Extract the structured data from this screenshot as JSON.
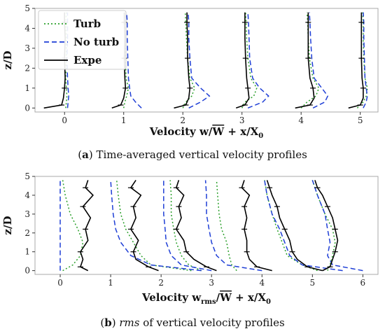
{
  "captions": {
    "a": {
      "letter": "a",
      "text": "Time-averaged vertical velocity profiles"
    },
    "b": {
      "letter": "b",
      "rms": "rms",
      "text": "of vertical velocity profiles"
    }
  },
  "colors": {
    "turb": "#2ca02c",
    "no_turb": "#1f3fd6",
    "expe": "#000000"
  },
  "chart_data": [
    {
      "type": "line",
      "panel": "a",
      "ylabel": "z/D",
      "xlabel_html": "Velocity w/W̄ + x/X₀",
      "xlabel_parts": {
        "prefix": "Velocity w/",
        "bar": "W",
        "suffix": " + x/X",
        "sub": "0"
      },
      "xlim": [
        -0.5,
        5.3
      ],
      "ylim": [
        -0.2,
        5.0
      ],
      "xticks": [
        0,
        1,
        2,
        3,
        4,
        5
      ],
      "yticks": [
        0,
        1,
        2,
        3,
        4,
        5
      ],
      "legend": {
        "placement": "top-left",
        "entries": [
          "Turb",
          "No turb",
          "Expe"
        ]
      },
      "series": [
        {
          "name": "Turb",
          "style": "dotted",
          "profiles": [
            {
              "x": [
                0.02,
                0.03,
                0.04,
                0.03,
                0.02,
                0.03,
                0.03,
                0.02,
                0.03
              ],
              "z": [
                0,
                0.3,
                0.6,
                1.0,
                1.5,
                2.5,
                3.5,
                4.3,
                4.8
              ]
            },
            {
              "x": [
                1.0,
                1.02,
                1.05,
                1.08,
                1.04,
                1.03,
                1.02,
                1.02,
                1.01
              ],
              "z": [
                0,
                0.3,
                0.6,
                1.0,
                1.5,
                2.5,
                3.5,
                4.3,
                4.8
              ]
            },
            {
              "x": [
                2.0,
                2.05,
                2.15,
                2.2,
                2.12,
                2.08,
                2.06,
                2.05,
                2.04
              ],
              "z": [
                0,
                0.3,
                0.6,
                1.0,
                1.5,
                2.5,
                3.5,
                4.3,
                4.8
              ]
            },
            {
              "x": [
                3.0,
                3.05,
                3.2,
                3.25,
                3.15,
                3.1,
                3.08,
                3.07,
                3.06
              ],
              "z": [
                0,
                0.3,
                0.6,
                1.0,
                1.5,
                2.5,
                3.5,
                4.3,
                4.8
              ]
            },
            {
              "x": [
                4.0,
                4.1,
                4.25,
                4.3,
                4.2,
                4.14,
                4.12,
                4.11,
                4.1
              ],
              "z": [
                0,
                0.3,
                0.6,
                1.0,
                1.5,
                2.5,
                3.5,
                4.3,
                4.8
              ]
            },
            {
              "x": [
                4.95,
                5.05,
                5.1,
                5.12,
                5.08,
                5.06,
                5.05,
                5.05,
                5.04
              ],
              "z": [
                0,
                0.3,
                0.6,
                1.0,
                1.5,
                2.5,
                3.5,
                4.3,
                4.8
              ]
            }
          ]
        },
        {
          "name": "No turb",
          "style": "dashed",
          "profiles": [
            {
              "x": [
                0.05,
                0.06,
                0.07,
                0.06,
                0.05,
                0.04,
                0.05,
                0.05,
                0.05
              ],
              "z": [
                0,
                0.3,
                0.6,
                1.0,
                1.5,
                2.5,
                3.5,
                4.3,
                4.8
              ]
            },
            {
              "x": [
                1.3,
                1.2,
                1.12,
                1.1,
                1.08,
                1.07,
                1.06,
                1.06,
                1.05
              ],
              "z": [
                0,
                0.3,
                0.6,
                1.0,
                1.5,
                2.5,
                3.5,
                4.3,
                4.8
              ]
            },
            {
              "x": [
                2.1,
                2.3,
                2.45,
                2.3,
                2.15,
                2.12,
                2.1,
                2.1,
                2.09
              ],
              "z": [
                0,
                0.3,
                0.6,
                1.0,
                1.5,
                2.5,
                3.5,
                4.3,
                4.8
              ]
            },
            {
              "x": [
                3.1,
                3.35,
                3.45,
                3.3,
                3.18,
                3.13,
                3.12,
                3.11,
                3.1
              ],
              "z": [
                0,
                0.3,
                0.6,
                1.0,
                1.5,
                2.5,
                3.5,
                4.3,
                4.8
              ]
            },
            {
              "x": [
                4.2,
                4.4,
                4.45,
                4.35,
                4.22,
                4.18,
                4.16,
                4.15,
                4.14
              ],
              "z": [
                0,
                0.3,
                0.6,
                1.0,
                1.5,
                2.5,
                3.5,
                4.3,
                4.8
              ]
            },
            {
              "x": [
                5.05,
                5.1,
                5.12,
                5.1,
                5.08,
                5.07,
                5.06,
                5.06,
                5.05
              ],
              "z": [
                0,
                0.3,
                0.6,
                1.0,
                1.5,
                2.5,
                3.5,
                4.3,
                4.8
              ]
            }
          ]
        },
        {
          "name": "Expe",
          "style": "solid",
          "profiles": [
            {
              "x": [
                -0.35,
                -0.05,
                -0.02,
                0.0,
                0.01,
                0.0,
                0.01,
                0.0,
                0.0
              ],
              "z": [
                0,
                0.15,
                0.5,
                1.0,
                1.5,
                2.5,
                3.5,
                4.3,
                4.8
              ]
            },
            {
              "x": [
                0.8,
                0.95,
                1.0,
                1.03,
                1.02,
                1.01,
                1.02,
                1.01,
                1.01
              ],
              "z": [
                0,
                0.15,
                0.5,
                1.0,
                1.5,
                2.5,
                3.5,
                4.3,
                4.8
              ]
            },
            {
              "x": [
                1.85,
                2.05,
                2.1,
                2.12,
                2.1,
                2.08,
                2.08,
                2.07,
                2.07
              ],
              "z": [
                0,
                0.15,
                0.5,
                1.0,
                1.5,
                2.5,
                3.5,
                4.3,
                4.8
              ]
            },
            {
              "x": [
                2.9,
                3.05,
                3.12,
                3.1,
                3.08,
                3.06,
                3.05,
                3.05,
                3.05
              ],
              "z": [
                0,
                0.15,
                0.5,
                1.0,
                1.5,
                2.5,
                3.5,
                4.3,
                4.8
              ]
            },
            {
              "x": [
                3.9,
                4.15,
                4.22,
                4.2,
                4.15,
                4.12,
                4.12,
                4.12,
                4.12
              ],
              "z": [
                0,
                0.15,
                0.5,
                1.0,
                1.5,
                2.5,
                3.5,
                4.3,
                4.8
              ]
            },
            {
              "x": [
                4.8,
                5.0,
                5.05,
                5.05,
                5.03,
                5.02,
                5.02,
                5.02,
                5.02
              ],
              "z": [
                0,
                0.15,
                0.5,
                1.0,
                1.5,
                2.5,
                3.5,
                4.3,
                4.8
              ]
            }
          ]
        }
      ]
    },
    {
      "type": "line",
      "panel": "b",
      "ylabel": "z/D",
      "xlabel_html": "Velocity w_rms/W̄ + x/X₀",
      "xlabel_parts": {
        "prefix": "Velocity w",
        "sub1": "rms",
        "mid": "/",
        "bar": "W",
        "suffix": " + x/X",
        "sub": "0"
      },
      "xlim": [
        -0.5,
        6.3
      ],
      "ylim": [
        -0.2,
        5.0
      ],
      "xticks": [
        0,
        1,
        2,
        3,
        4,
        5,
        6
      ],
      "yticks": [
        0,
        1,
        2,
        3,
        4,
        5
      ],
      "series": [
        {
          "name": "Turb",
          "style": "dotted",
          "profiles": [
            {
              "x": [
                0.05,
                0.25,
                0.4,
                0.45,
                0.35,
                0.2,
                0.1,
                0.05
              ],
              "z": [
                0,
                0.3,
                0.8,
                1.5,
                2.2,
                3.0,
                4.0,
                4.8
              ]
            },
            {
              "x": [
                2.6,
                1.8,
                1.6,
                1.45,
                1.3,
                1.2,
                1.15,
                1.12
              ],
              "z": [
                0,
                0.3,
                0.8,
                1.5,
                2.2,
                3.0,
                4.0,
                4.8
              ]
            },
            {
              "x": [
                2.8,
                2.55,
                2.4,
                2.3,
                2.25,
                2.2,
                2.2,
                2.18
              ],
              "z": [
                0,
                0.3,
                0.8,
                1.5,
                2.2,
                3.0,
                4.0,
                4.8
              ]
            },
            {
              "x": [
                3.5,
                3.4,
                3.35,
                3.3,
                3.2,
                3.15,
                3.12,
                3.1
              ],
              "z": [
                0,
                0.3,
                0.8,
                1.5,
                2.2,
                3.0,
                4.0,
                4.8
              ]
            },
            {
              "x": [
                5.1,
                4.8,
                4.5,
                4.4,
                4.3,
                4.2,
                4.1,
                4.05
              ],
              "z": [
                0,
                0.3,
                0.8,
                1.5,
                2.2,
                3.0,
                4.0,
                4.8
              ]
            },
            {
              "x": [
                5.3,
                5.35,
                5.4,
                5.45,
                5.4,
                5.25,
                5.1,
                5.0
              ],
              "z": [
                0,
                0.3,
                0.8,
                1.5,
                2.2,
                3.0,
                4.0,
                4.8
              ]
            }
          ]
        },
        {
          "name": "No turb",
          "style": "dashed",
          "profiles": [
            {
              "x": [
                0.0,
                0.0,
                0.0,
                0.0,
                0.0,
                0.0,
                0.0,
                0.0
              ],
              "z": [
                0,
                0.3,
                0.8,
                1.5,
                2.2,
                3.0,
                4.0,
                4.8
              ]
            },
            {
              "x": [
                2.8,
                1.8,
                1.4,
                1.2,
                1.1,
                1.05,
                1.02,
                1.0
              ],
              "z": [
                0,
                0.3,
                0.8,
                1.5,
                2.2,
                3.0,
                4.0,
                4.8
              ]
            },
            {
              "x": [
                3.0,
                2.4,
                2.2,
                2.1,
                2.08,
                2.05,
                2.05,
                2.05
              ],
              "z": [
                0,
                0.3,
                0.8,
                1.5,
                2.2,
                3.0,
                4.0,
                4.8
              ]
            },
            {
              "x": [
                4.0,
                3.3,
                3.1,
                3.0,
                2.95,
                2.9,
                2.9,
                2.88
              ],
              "z": [
                0,
                0.3,
                0.8,
                1.5,
                2.2,
                3.0,
                4.0,
                4.8
              ]
            },
            {
              "x": [
                5.6,
                4.8,
                4.55,
                4.45,
                4.35,
                4.2,
                4.1,
                4.05
              ],
              "z": [
                0,
                0.3,
                0.8,
                1.5,
                2.2,
                3.0,
                4.0,
                4.8
              ]
            },
            {
              "x": [
                6.0,
                5.4,
                5.3,
                5.35,
                5.3,
                5.25,
                5.1,
                5.0
              ],
              "z": [
                0,
                0.3,
                0.8,
                1.5,
                2.2,
                3.0,
                4.0,
                4.8
              ]
            }
          ]
        },
        {
          "name": "Expe",
          "style": "solid",
          "profiles": [
            {
              "x": [
                0.55,
                0.4,
                0.45,
                0.4,
                0.55,
                0.5,
                0.6,
                0.45,
                0.65,
                0.5,
                0.55
              ],
              "z": [
                0,
                0.2,
                0.6,
                1.0,
                1.6,
                2.2,
                2.8,
                3.4,
                4.0,
                4.4,
                4.8
              ]
            },
            {
              "x": [
                1.95,
                1.75,
                1.5,
                1.45,
                1.55,
                1.4,
                1.5,
                1.45,
                1.6,
                1.4,
                1.5
              ],
              "z": [
                0,
                0.2,
                0.6,
                1.0,
                1.6,
                2.2,
                2.8,
                3.4,
                4.0,
                4.4,
                4.8
              ]
            },
            {
              "x": [
                3.1,
                2.9,
                2.65,
                2.5,
                2.45,
                2.3,
                2.4,
                2.35,
                2.45,
                2.3,
                2.35
              ],
              "z": [
                0,
                0.2,
                0.6,
                1.0,
                1.6,
                2.2,
                2.8,
                3.4,
                4.0,
                4.4,
                4.8
              ]
            },
            {
              "x": [
                4.2,
                3.9,
                3.75,
                3.7,
                3.7,
                3.65,
                3.7,
                3.65,
                3.75,
                3.6,
                3.65
              ],
              "z": [
                0,
                0.2,
                0.6,
                1.0,
                1.6,
                2.2,
                2.8,
                3.4,
                4.0,
                4.4,
                4.8
              ]
            },
            {
              "x": [
                5.2,
                4.9,
                4.7,
                4.6,
                4.55,
                4.45,
                4.35,
                4.3,
                4.2,
                4.15,
                4.1
              ],
              "z": [
                0,
                0.2,
                0.6,
                1.0,
                1.6,
                2.2,
                2.8,
                3.4,
                4.0,
                4.4,
                4.8
              ]
            },
            {
              "x": [
                5.2,
                5.35,
                5.4,
                5.45,
                5.5,
                5.45,
                5.4,
                5.3,
                5.2,
                5.1,
                5.05
              ],
              "z": [
                0,
                0.2,
                0.6,
                1.0,
                1.6,
                2.2,
                2.8,
                3.4,
                4.0,
                4.4,
                4.8
              ]
            }
          ]
        }
      ]
    }
  ]
}
